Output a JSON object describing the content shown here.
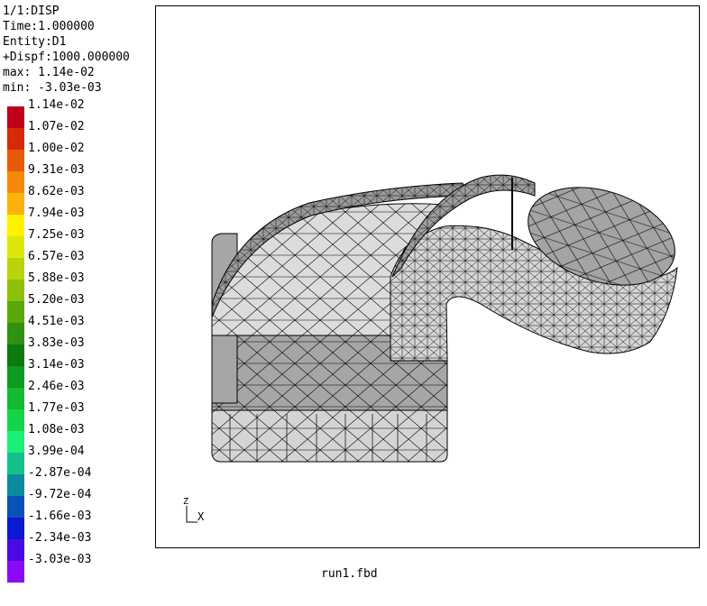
{
  "info": {
    "view": "1/1:DISP",
    "time": "Time:1.000000",
    "entity": "Entity:D1",
    "dispf": "+Dispf:1000.000000",
    "max": "max: 1.14e-02",
    "min": "min: -3.03e-03"
  },
  "legend": [
    {
      "label": "1.14e-02",
      "color": "#c0001a"
    },
    {
      "label": "1.07e-02",
      "color": "#d62a0a"
    },
    {
      "label": "1.00e-02",
      "color": "#e85a0a"
    },
    {
      "label": "9.31e-03",
      "color": "#f58a0a"
    },
    {
      "label": "8.62e-03",
      "color": "#fbb20a"
    },
    {
      "label": "7.94e-03",
      "color": "#fff200"
    },
    {
      "label": "7.25e-03",
      "color": "#dde80a"
    },
    {
      "label": "6.57e-03",
      "color": "#b8d40a"
    },
    {
      "label": "5.88e-03",
      "color": "#8cc00a"
    },
    {
      "label": "5.20e-03",
      "color": "#5aa80a"
    },
    {
      "label": "4.51e-03",
      "color": "#2f9210"
    },
    {
      "label": "3.83e-03",
      "color": "#0c7a10"
    },
    {
      "label": "3.14e-03",
      "color": "#0f9a22"
    },
    {
      "label": "2.46e-03",
      "color": "#14ba30"
    },
    {
      "label": "1.77e-03",
      "color": "#16d44a"
    },
    {
      "label": "1.08e-03",
      "color": "#1af07a"
    },
    {
      "label": "3.99e-04",
      "color": "#14c08a"
    },
    {
      "label": "-2.87e-04",
      "color": "#0b8aa0"
    },
    {
      "label": "-9.72e-04",
      "color": "#0a52b8"
    },
    {
      "label": "-1.66e-03",
      "color": "#0a1ad0"
    },
    {
      "label": "-2.34e-03",
      "color": "#4a0ae6"
    },
    {
      "label": "-3.03e-03",
      "color": "#8a0af5"
    }
  ],
  "axes": {
    "z": "Z",
    "x": "X"
  },
  "filename": "run1.fbd"
}
